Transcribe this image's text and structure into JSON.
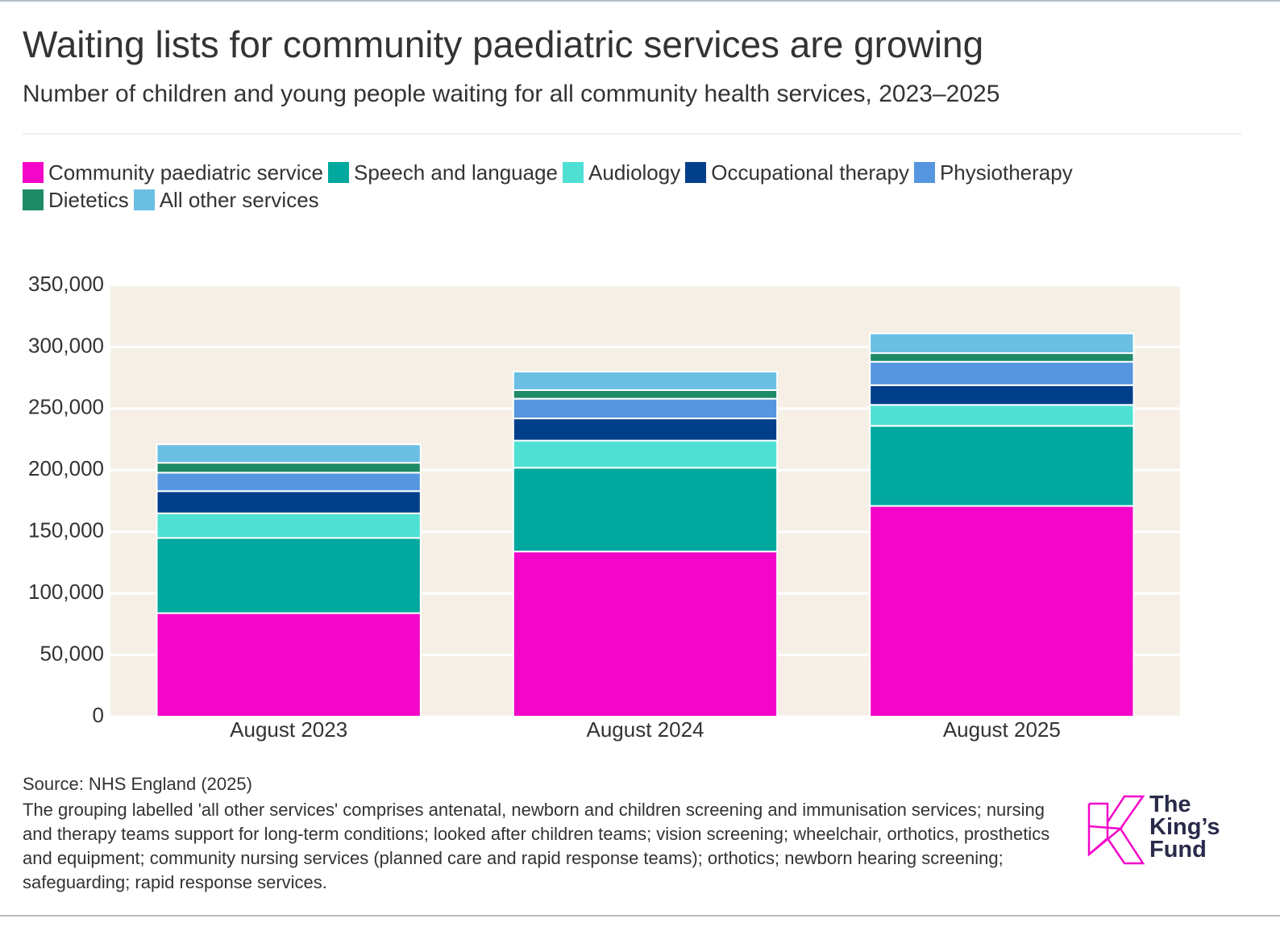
{
  "chart_data": {
    "type": "stacked_bar",
    "title": "Waiting lists for community paediatric services are growing",
    "subtitle": "Number of children and young people waiting for all community health services, 2023–2025",
    "categories": [
      "August 2023",
      "August 2024",
      "August 2025"
    ],
    "series": [
      {
        "name": "Community paediatric service",
        "color": "#f406c9",
        "values": [
          84000,
          134000,
          171000
        ]
      },
      {
        "name": "Speech and language",
        "color": "#00a89d",
        "values": [
          61000,
          68000,
          65000
        ]
      },
      {
        "name": "Audiology",
        "color": "#4fe0d4",
        "values": [
          20000,
          22000,
          17000
        ]
      },
      {
        "name": "Occupational therapy",
        "color": "#023f8a",
        "values": [
          18000,
          18000,
          16000
        ]
      },
      {
        "name": "Physiotherapy",
        "color": "#5696e0",
        "values": [
          15000,
          16000,
          19000
        ]
      },
      {
        "name": "Dietetics",
        "color": "#1e8a66",
        "values": [
          8000,
          7000,
          7000
        ]
      },
      {
        "name": "All other services",
        "color": "#6bbfe3",
        "values": [
          15000,
          15000,
          16000
        ]
      }
    ],
    "ylim": [
      0,
      350000
    ],
    "yticks": [
      0,
      {
        "value": 50000,
        "label": "50,000"
      },
      {
        "value": 100000,
        "label": "100,000"
      },
      {
        "value": 150000,
        "label": "150,000"
      },
      {
        "value": 200000,
        "label": "200,000"
      },
      {
        "value": 250000,
        "label": "250,000"
      },
      {
        "value": 300000,
        "label": "300,000"
      },
      {
        "value": 350000,
        "label": "350,000"
      }
    ],
    "grid": true,
    "legend": "top",
    "source": "Source: NHS England (2025)",
    "note": "The grouping labelled 'all other services' comprises antenatal, newborn and children screening and immunisation services; nursing and therapy teams support for long-term conditions; looked after children teams; vision screening; wheelchair, orthotics, prosthetics and equipment; community nursing services (planned care and rapid response teams); orthotics; newborn hearing screening; safeguarding; rapid response services.",
    "logo": [
      "The",
      "King’s",
      "Fund"
    ]
  }
}
